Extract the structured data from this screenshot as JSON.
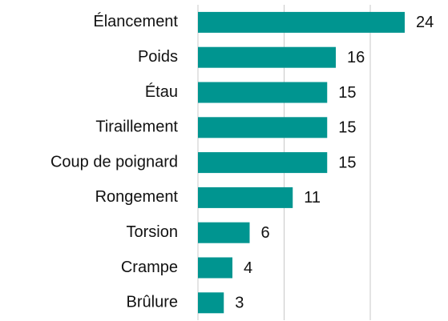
{
  "chart_data": {
    "type": "barh",
    "categories": [
      "Élancement",
      "Poids",
      "Étau",
      "Tiraillement",
      "Coup de poignard",
      "Rongement",
      "Torsion",
      "Crampe",
      "Brûlure"
    ],
    "values": [
      24,
      16,
      15,
      15,
      15,
      11,
      6,
      4,
      3
    ],
    "color": "#009590",
    "xlim": [
      0,
      28
    ],
    "xticks": [
      0,
      10,
      20
    ],
    "grid": true
  }
}
